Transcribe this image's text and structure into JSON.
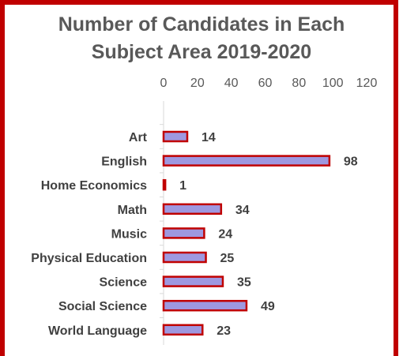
{
  "colors": {
    "frame": "#c00000",
    "bar_fill": "#9e98e0",
    "bar_stroke": "#c00000",
    "axis": "#d9d9d9"
  },
  "chart_data": {
    "type": "bar",
    "orientation": "horizontal",
    "title_line1": "Number of Candidates in Each",
    "title_line2": "Subject Area 2019-2020",
    "categories": [
      "Art",
      "English",
      "Home Economics",
      "Math",
      "Music",
      "Physical Education",
      "Science",
      "Social Science",
      "World Language"
    ],
    "values": [
      14,
      98,
      1,
      34,
      24,
      25,
      35,
      49,
      23
    ],
    "xlim": [
      0,
      120
    ],
    "xticks": [
      0,
      20,
      40,
      60,
      80,
      100,
      120
    ],
    "x_axis_position": "top",
    "grid": false,
    "legend": "none"
  }
}
